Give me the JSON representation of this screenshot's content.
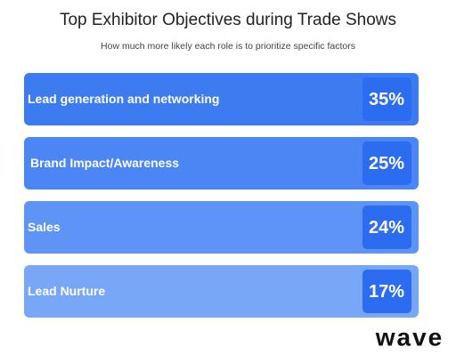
{
  "header": {
    "title": "Top Exhibitor Objectives during Trade Shows",
    "subtitle": "How much more likely each role is to prioritize specific factors"
  },
  "items": [
    {
      "label": "Lead generation and networking",
      "value": "35%"
    },
    {
      "label": "Brand Impact/Awareness",
      "value": "25%"
    },
    {
      "label": "Sales",
      "value": "24%"
    },
    {
      "label": "Lead Nurture",
      "value": "17%"
    }
  ],
  "brand": "wave"
}
